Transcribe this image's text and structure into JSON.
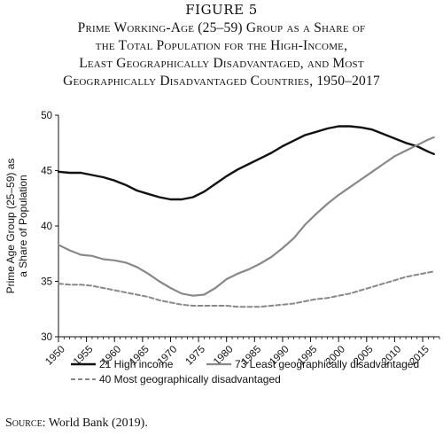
{
  "figure_label": "FIGURE 5",
  "title_lines": [
    "Prime Working-Age (25–59) Group as a Share of",
    "the Total Population for the High-Income,",
    "Least Geographically Disadvantaged, and Most",
    "Geographically Disadvantaged Countries, 1950–2017"
  ],
  "source": {
    "prefix": "Source:",
    "text": "World Bank (2019)."
  },
  "chart_data": {
    "type": "line",
    "title": "Prime Working-Age (25–59) Group as a Share of the Total Population for the High-Income, Least Geographically Disadvantaged, and Most Geographically Disadvantaged Countries, 1950–2017",
    "xlabel": "",
    "ylabel_lines": [
      "Prime Age Group (25–59) as",
      "a Share of Population"
    ],
    "xlim": [
      1950,
      2018
    ],
    "ylim": [
      30,
      50
    ],
    "x_ticks": [
      "1950",
      "1955",
      "1960",
      "1965",
      "1970",
      "1975",
      "1980",
      "1985",
      "1990",
      "1995",
      "2000",
      "2005",
      "2010",
      "2015"
    ],
    "y_ticks": [
      "30",
      "35",
      "40",
      "45",
      "50"
    ],
    "grid": false,
    "legend_position": "bottom",
    "colors": {
      "high_income": "#111111",
      "least": "#888888",
      "most": "#888888"
    },
    "series": [
      {
        "name": "21 High income",
        "style": "solid",
        "x": [
          1950,
          1952,
          1954,
          1956,
          1958,
          1960,
          1962,
          1964,
          1966,
          1968,
          1970,
          1972,
          1974,
          1976,
          1978,
          1980,
          1982,
          1984,
          1986,
          1988,
          1990,
          1992,
          1994,
          1996,
          1998,
          2000,
          2002,
          2004,
          2006,
          2008,
          2010,
          2012,
          2014,
          2016,
          2017
        ],
        "y": [
          44.9,
          44.8,
          44.8,
          44.6,
          44.4,
          44.1,
          43.7,
          43.2,
          42.9,
          42.6,
          42.4,
          42.4,
          42.6,
          43.1,
          43.8,
          44.5,
          45.1,
          45.6,
          46.1,
          46.6,
          47.2,
          47.7,
          48.2,
          48.5,
          48.8,
          49.0,
          49.0,
          48.9,
          48.7,
          48.3,
          47.9,
          47.5,
          47.2,
          46.7,
          46.5
        ]
      },
      {
        "name": "73 Least geographically disadvantaged",
        "style": "solid",
        "x": [
          1950,
          1952,
          1954,
          1956,
          1958,
          1960,
          1962,
          1964,
          1966,
          1968,
          1970,
          1972,
          1974,
          1976,
          1978,
          1980,
          1982,
          1984,
          1986,
          1988,
          1990,
          1992,
          1994,
          1996,
          1998,
          2000,
          2002,
          2004,
          2006,
          2008,
          2010,
          2012,
          2014,
          2016,
          2017
        ],
        "y": [
          38.3,
          37.8,
          37.4,
          37.3,
          37.0,
          36.9,
          36.7,
          36.3,
          35.7,
          35.0,
          34.4,
          33.9,
          33.7,
          33.8,
          34.4,
          35.2,
          35.7,
          36.1,
          36.6,
          37.2,
          38.0,
          38.9,
          40.1,
          41.1,
          42.0,
          42.8,
          43.5,
          44.2,
          44.9,
          45.6,
          46.3,
          46.8,
          47.3,
          47.8,
          48.0
        ]
      },
      {
        "name": "40 Most geographically disadvantaged",
        "style": "dashed",
        "x": [
          1950,
          1952,
          1954,
          1956,
          1958,
          1960,
          1962,
          1964,
          1966,
          1968,
          1970,
          1972,
          1974,
          1976,
          1978,
          1980,
          1982,
          1984,
          1986,
          1988,
          1990,
          1992,
          1994,
          1996,
          1998,
          2000,
          2002,
          2004,
          2006,
          2008,
          2010,
          2012,
          2014,
          2016,
          2017
        ],
        "y": [
          34.8,
          34.7,
          34.7,
          34.6,
          34.4,
          34.2,
          34.0,
          33.8,
          33.6,
          33.3,
          33.1,
          32.9,
          32.8,
          32.8,
          32.8,
          32.8,
          32.7,
          32.7,
          32.7,
          32.8,
          32.9,
          33.0,
          33.2,
          33.4,
          33.5,
          33.7,
          33.9,
          34.2,
          34.5,
          34.8,
          35.1,
          35.4,
          35.6,
          35.8,
          35.9
        ]
      }
    ]
  }
}
